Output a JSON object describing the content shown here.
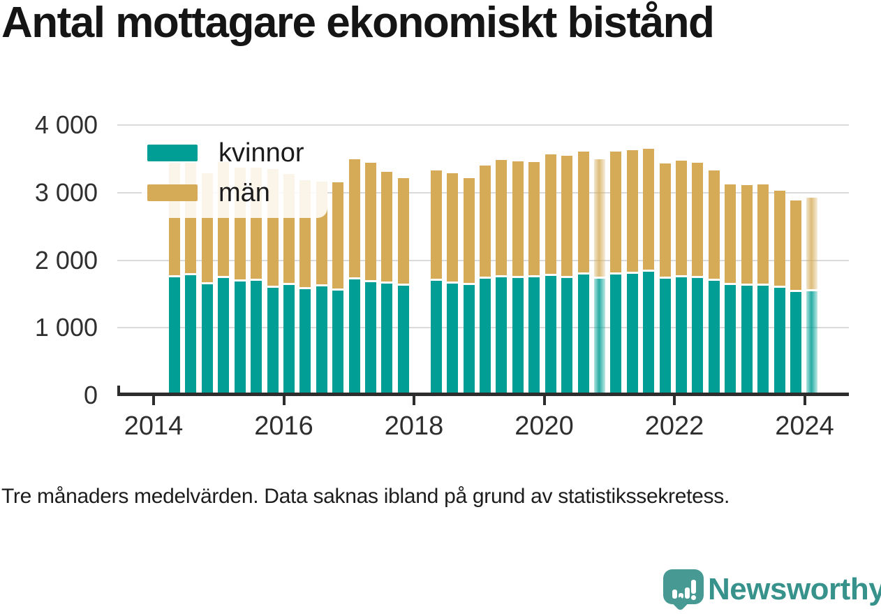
{
  "header": {
    "title": "Antal mottagare ekonomiskt bistånd"
  },
  "legend": {
    "items": [
      {
        "label": "kvinnor",
        "color": "#009e95"
      },
      {
        "label": "män",
        "color": "#d5ab58"
      }
    ]
  },
  "footnote": "Tre månaders medelvärden. Data saknas ibland på grund av statistikssekretess.",
  "brand": {
    "name": "Newsworthy",
    "icon": "newsworthy-speech-bubble-bar-chart-icon",
    "color": "#37928c"
  },
  "colors": {
    "kvinnor": "#009e95",
    "man": "#d5ab58",
    "gridline": "#dadada",
    "axis": "#2d2d2d",
    "background": "#ffffff"
  },
  "chart_data": {
    "type": "bar",
    "stacked": true,
    "title": "Antal mottagare ekonomiskt bistånd",
    "note": "Tre månaders medelvärden. Data saknas ibland på grund av statistikssekretess.",
    "bars_per_year": 4,
    "x_ticks": [
      2014,
      2016,
      2018,
      2020,
      2022,
      2024
    ],
    "y_ticks": [
      0,
      1000,
      2000,
      3000,
      4000
    ],
    "y_tick_labels": [
      "0",
      "1 000",
      "2 000",
      "3 000",
      "4 000"
    ],
    "ylim": [
      0,
      4000
    ],
    "grid": "horizontal",
    "legend_position": "top-left-overlay",
    "missing_data_indices": [
      15
    ],
    "faded_bar_indices": [
      26,
      39
    ],
    "series": [
      {
        "name": "kvinnor",
        "color": "#009e95",
        "values": [
          1750,
          1780,
          1640,
          1740,
          1690,
          1700,
          1590,
          1630,
          1570,
          1610,
          1550,
          1720,
          1680,
          1660,
          1620,
          null,
          1700,
          1660,
          1630,
          1730,
          1750,
          1740,
          1750,
          1770,
          1740,
          1790,
          1730,
          1790,
          1800,
          1830,
          1730,
          1750,
          1740,
          1700,
          1630,
          1620,
          1620,
          1590,
          1530,
          1540
        ]
      },
      {
        "name": "män",
        "color": "#d5ab58",
        "values": [
          1660,
          1630,
          1620,
          1680,
          1650,
          1640,
          1730,
          1620,
          1590,
          1530,
          1570,
          1750,
          1730,
          1620,
          1570,
          null,
          1600,
          1600,
          1560,
          1640,
          1710,
          1690,
          1670,
          1770,
          1780,
          1790,
          1740,
          1790,
          1800,
          1790,
          1670,
          1700,
          1670,
          1600,
          1460,
          1460,
          1470,
          1410,
          1330,
          1360
        ]
      }
    ]
  }
}
